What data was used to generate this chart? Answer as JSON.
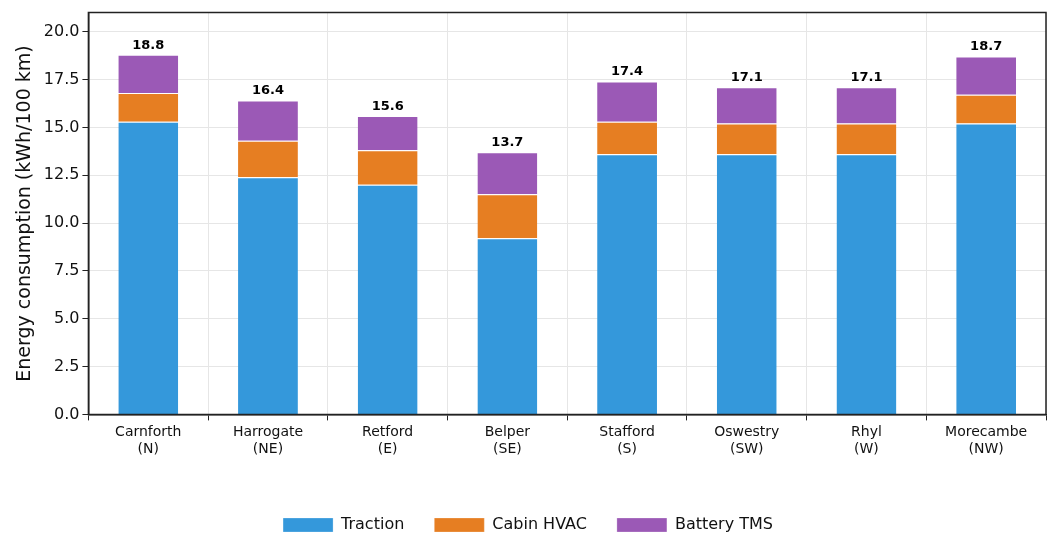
{
  "chart_data": {
    "type": "bar",
    "stacked": true,
    "ylabel": "Energy consumption (kWh/100 km)",
    "categories": [
      "Carnforth\n(N)",
      "Harrogate\n(NE)",
      "Retford\n(E)",
      "Belper\n(SE)",
      "Stafford\n(S)",
      "Oswestry\n(SW)",
      "Rhyl\n(W)",
      "Morecambe\n(NW)"
    ],
    "series": [
      {
        "name": "Traction",
        "color": "#3498db",
        "values": [
          15.3,
          12.4,
          12.0,
          9.2,
          13.6,
          13.6,
          13.6,
          15.2
        ]
      },
      {
        "name": "Cabin HVAC",
        "color": "#e67e22",
        "values": [
          1.5,
          1.9,
          1.8,
          2.3,
          1.7,
          1.6,
          1.6,
          1.5
        ]
      },
      {
        "name": "Battery TMS",
        "color": "#9b59b6",
        "values": [
          2.0,
          2.1,
          1.8,
          2.2,
          2.1,
          1.9,
          1.9,
          2.0
        ]
      }
    ],
    "totals": [
      "18.8",
      "16.4",
      "15.6",
      "13.7",
      "17.4",
      "17.1",
      "17.1",
      "18.7"
    ],
    "ylim": [
      0,
      21
    ],
    "yticks": [
      {
        "value": 0,
        "label": "0.0"
      },
      {
        "value": 2.5,
        "label": "2.5"
      },
      {
        "value": 5,
        "label": "5.0"
      },
      {
        "value": 7.5,
        "label": "7.5"
      },
      {
        "value": 10,
        "label": "10.0"
      },
      {
        "value": 12.5,
        "label": "12.5"
      },
      {
        "value": 15,
        "label": "15.0"
      },
      {
        "value": 17.5,
        "label": "17.5"
      },
      {
        "value": 20,
        "label": "20.0"
      }
    ],
    "grid": true,
    "legend": "bottom"
  }
}
